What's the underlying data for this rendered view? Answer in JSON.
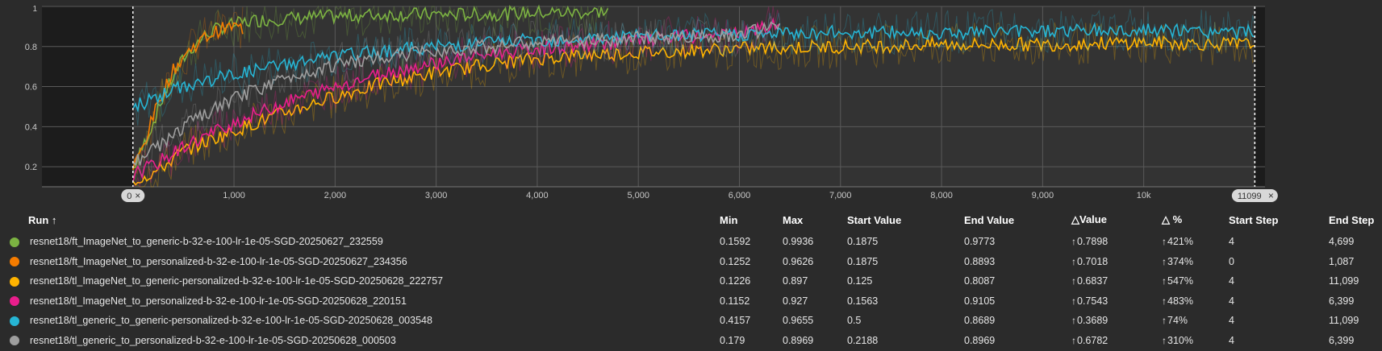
{
  "chart_data": {
    "type": "line",
    "xlim": [
      -900,
      11200
    ],
    "ylim": [
      0.1,
      1.0
    ],
    "x_ticks": [
      1000,
      2000,
      3000,
      4000,
      5000,
      6000,
      7000,
      8000,
      9000,
      10000
    ],
    "x_tick_labels": [
      "1,000",
      "2,000",
      "3,000",
      "4,000",
      "5,000",
      "6,000",
      "7,000",
      "8,000",
      "9,000",
      "10k"
    ],
    "y_ticks": [
      0.2,
      0.4,
      0.6,
      0.8
    ],
    "y_tick_labels": [
      "0.2",
      "0.4",
      "0.6",
      "0.8"
    ],
    "y_top_label": "1",
    "grid": true,
    "range_start": {
      "x": 0,
      "label": "0"
    },
    "range_end": {
      "x": 11099,
      "label": "11099"
    },
    "series": [
      {
        "name": "resnet18/ft_ImageNet_to_generic-b-32-e-100-lr-1e-05-SGD-20250627_232559",
        "color": "#7cb342",
        "x": [
          4,
          100,
          200,
          300,
          400,
          500,
          600,
          700,
          800,
          900,
          1000,
          1200,
          1500,
          2000,
          2500,
          3000,
          3500,
          4000,
          4500,
          4699
        ],
        "y": [
          0.19,
          0.3,
          0.42,
          0.55,
          0.65,
          0.74,
          0.8,
          0.85,
          0.88,
          0.9,
          0.91,
          0.93,
          0.94,
          0.95,
          0.96,
          0.96,
          0.96,
          0.97,
          0.97,
          0.977
        ]
      },
      {
        "name": "resnet18/ft_ImageNet_to_personalized-b-32-e-100-lr-1e-05-SGD-20250627_234356",
        "color": "#f57c00",
        "x": [
          0,
          100,
          200,
          300,
          400,
          500,
          600,
          700,
          800,
          900,
          1000,
          1087
        ],
        "y": [
          0.19,
          0.3,
          0.45,
          0.58,
          0.68,
          0.75,
          0.8,
          0.84,
          0.87,
          0.89,
          0.9,
          0.889
        ]
      },
      {
        "name": "resnet18/tl_ImageNet_to_generic-personalized-b-32-e-100-lr-1e-05-SGD-20250628_222757",
        "color": "#ffb300",
        "x": [
          4,
          250,
          500,
          1000,
          1500,
          2000,
          2500,
          3000,
          3500,
          4000,
          4500,
          5000,
          6000,
          7000,
          8000,
          9000,
          10000,
          11099
        ],
        "y": [
          0.13,
          0.18,
          0.28,
          0.38,
          0.47,
          0.55,
          0.62,
          0.67,
          0.71,
          0.74,
          0.76,
          0.77,
          0.79,
          0.8,
          0.81,
          0.81,
          0.82,
          0.809
        ]
      },
      {
        "name": "resnet18/tl_ImageNet_to_personalized-b-32-e-100-lr-1e-05-SGD-20250628_220151",
        "color": "#e91e8c",
        "x": [
          4,
          250,
          500,
          1000,
          1500,
          2000,
          2500,
          3000,
          3500,
          4000,
          4500,
          5000,
          5500,
          6000,
          6399
        ],
        "y": [
          0.16,
          0.22,
          0.3,
          0.42,
          0.52,
          0.6,
          0.67,
          0.72,
          0.76,
          0.79,
          0.81,
          0.83,
          0.85,
          0.86,
          0.91
        ]
      },
      {
        "name": "resnet18/tl_generic_to_generic-personalized-b-32-e-100-lr-1e-05-SGD-20250628_003548",
        "color": "#26b5d4",
        "x": [
          4,
          250,
          500,
          1000,
          1500,
          2000,
          2500,
          3000,
          3500,
          4000,
          4500,
          5000,
          6000,
          7000,
          8000,
          9000,
          10000,
          11099
        ],
        "y": [
          0.5,
          0.55,
          0.6,
          0.66,
          0.71,
          0.75,
          0.78,
          0.8,
          0.82,
          0.83,
          0.84,
          0.85,
          0.86,
          0.87,
          0.87,
          0.88,
          0.88,
          0.869
        ]
      },
      {
        "name": "resnet18/tl_generic_to_personalized-b-32-e-100-lr-1e-05-SGD-20250628_000503",
        "color": "#9e9e9e",
        "x": [
          4,
          250,
          500,
          1000,
          1500,
          2000,
          2500,
          3000,
          3500,
          4000,
          4500,
          5000,
          5500,
          6000,
          6399
        ],
        "y": [
          0.22,
          0.3,
          0.4,
          0.54,
          0.64,
          0.71,
          0.75,
          0.78,
          0.8,
          0.82,
          0.83,
          0.84,
          0.85,
          0.86,
          0.897
        ]
      }
    ]
  },
  "table": {
    "headers": [
      "Run",
      "Min",
      "Max",
      "Start Value",
      "End Value",
      "Value",
      "%",
      "Start Step",
      "End Step"
    ],
    "sort_indicator": "↑",
    "delta_symbol": "△",
    "rows": [
      {
        "color": "#7cb342",
        "run": "resnet18/ft_ImageNet_to_generic-b-32-e-100-lr-1e-05-SGD-20250627_232559",
        "min": "0.1592",
        "max": "0.9936",
        "start_value": "0.1875",
        "end_value": "0.9773",
        "delta_value": "0.7898",
        "delta_pct": "421%",
        "start_step": "4",
        "end_step": "4,699"
      },
      {
        "color": "#f57c00",
        "run": "resnet18/ft_ImageNet_to_personalized-b-32-e-100-lr-1e-05-SGD-20250627_234356",
        "min": "0.1252",
        "max": "0.9626",
        "start_value": "0.1875",
        "end_value": "0.8893",
        "delta_value": "0.7018",
        "delta_pct": "374%",
        "start_step": "0",
        "end_step": "1,087"
      },
      {
        "color": "#ffb300",
        "run": "resnet18/tl_ImageNet_to_generic-personalized-b-32-e-100-lr-1e-05-SGD-20250628_222757",
        "min": "0.1226",
        "max": "0.897",
        "start_value": "0.125",
        "end_value": "0.8087",
        "delta_value": "0.6837",
        "delta_pct": "547%",
        "start_step": "4",
        "end_step": "11,099"
      },
      {
        "color": "#e91e8c",
        "run": "resnet18/tl_ImageNet_to_personalized-b-32-e-100-lr-1e-05-SGD-20250628_220151",
        "min": "0.1152",
        "max": "0.927",
        "start_value": "0.1563",
        "end_value": "0.9105",
        "delta_value": "0.7543",
        "delta_pct": "483%",
        "start_step": "4",
        "end_step": "6,399"
      },
      {
        "color": "#26b5d4",
        "run": "resnet18/tl_generic_to_generic-personalized-b-32-e-100-lr-1e-05-SGD-20250628_003548",
        "min": "0.4157",
        "max": "0.9655",
        "start_value": "0.5",
        "end_value": "0.8689",
        "delta_value": "0.3689",
        "delta_pct": "74%",
        "start_step": "4",
        "end_step": "11,099"
      },
      {
        "color": "#9e9e9e",
        "run": "resnet18/tl_generic_to_personalized-b-32-e-100-lr-1e-05-SGD-20250628_000503",
        "min": "0.179",
        "max": "0.8969",
        "start_value": "0.2188",
        "end_value": "0.8969",
        "delta_value": "0.6782",
        "delta_pct": "310%",
        "start_step": "4",
        "end_step": "6,399"
      }
    ]
  },
  "ui": {
    "close_glyph": "×",
    "up_arrow": "↑"
  }
}
